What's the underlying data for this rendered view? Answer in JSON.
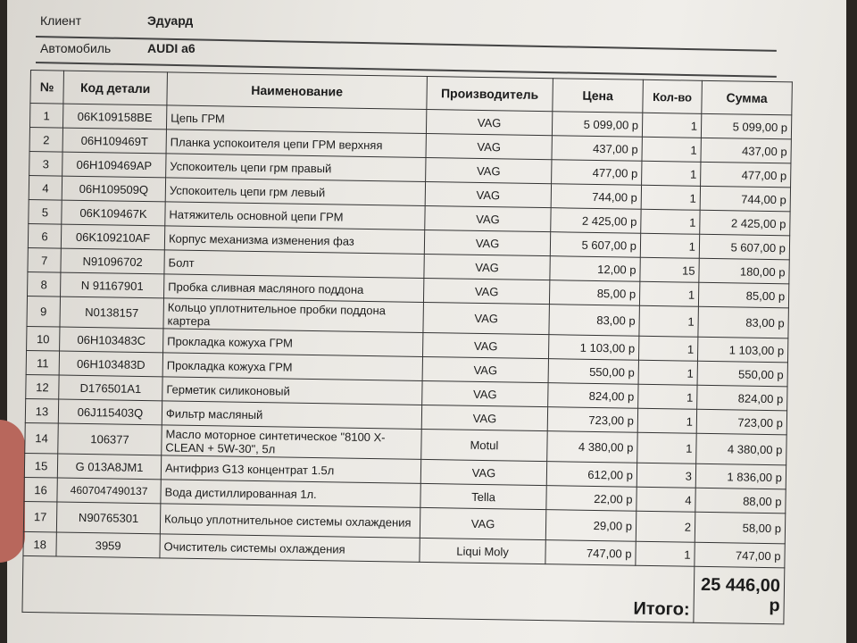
{
  "header": {
    "client_label": "Клиент",
    "client_value": "Эдуард",
    "car_label": "Автомобиль",
    "car_value": "AUDI a6"
  },
  "table": {
    "columns": [
      "№",
      "Код детали",
      "Наименование",
      "Производитель",
      "Цена",
      "Кол-во",
      "Сумма"
    ],
    "rows": [
      [
        "1",
        "06K109158BE",
        "Цепь ГРМ",
        "VAG",
        "5 099,00 р",
        "1",
        "5 099,00 р"
      ],
      [
        "2",
        "06H109469T",
        "Планка успокоителя цепи ГРМ верхняя",
        "VAG",
        "437,00 р",
        "1",
        "437,00 р"
      ],
      [
        "3",
        "06H109469AP",
        "Успокоитель цепи грм правый",
        "VAG",
        "477,00 р",
        "1",
        "477,00 р"
      ],
      [
        "4",
        "06H109509Q",
        "Успокоитель цепи грм левый",
        "VAG",
        "744,00 р",
        "1",
        "744,00 р"
      ],
      [
        "5",
        "06K109467K",
        "Натяжитель основной цепи ГРМ",
        "VAG",
        "2 425,00 р",
        "1",
        "2 425,00 р"
      ],
      [
        "6",
        "06K109210AF",
        "Корпус механизма изменения фаз",
        "VAG",
        "5 607,00 р",
        "1",
        "5 607,00 р"
      ],
      [
        "7",
        "N91096702",
        "Болт",
        "VAG",
        "12,00 р",
        "15",
        "180,00 р"
      ],
      [
        "8",
        "N 91167901",
        "Пробка сливная масляного поддона",
        "VAG",
        "85,00 р",
        "1",
        "85,00 р"
      ],
      [
        "9",
        "N0138157",
        "Кольцо уплотнительное пробки поддона картера",
        "VAG",
        "83,00 р",
        "1",
        "83,00 р"
      ],
      [
        "10",
        "06H103483C",
        "Прокладка кожуха ГРМ",
        "VAG",
        "1 103,00 р",
        "1",
        "1 103,00 р"
      ],
      [
        "11",
        "06H103483D",
        "Прокладка кожуха ГРМ",
        "VAG",
        "550,00 р",
        "1",
        "550,00 р"
      ],
      [
        "12",
        "D176501A1",
        "Герметик силиконовый",
        "VAG",
        "824,00 р",
        "1",
        "824,00 р"
      ],
      [
        "13",
        "06J115403Q",
        "Фильтр масляный",
        "VAG",
        "723,00 р",
        "1",
        "723,00 р"
      ],
      [
        "14",
        "106377",
        "Масло моторное синтетическое \"8100 X-CLEAN + 5W-30\", 5л",
        "Motul",
        "4 380,00 р",
        "1",
        "4 380,00 р"
      ],
      [
        "15",
        "G 013A8JM1",
        "Антифриз G13 концентрат 1.5л",
        "VAG",
        "612,00 р",
        "3",
        "1 836,00 р"
      ],
      [
        "16",
        "4607047490137",
        "Вода дистиллированная 1л.",
        "Tella",
        "22,00 р",
        "4",
        "88,00 р"
      ],
      [
        "17",
        "N90765301",
        "Кольцо уплотнительное системы охлаждения",
        "VAG",
        "29,00 р",
        "2",
        "58,00 р"
      ],
      [
        "18",
        "3959",
        "Очиститель системы охлаждения",
        "Liqui Moly",
        "747,00 р",
        "1",
        "747,00 р"
      ]
    ],
    "total_label": "Итого:",
    "total_value": "25 446,00 р"
  }
}
